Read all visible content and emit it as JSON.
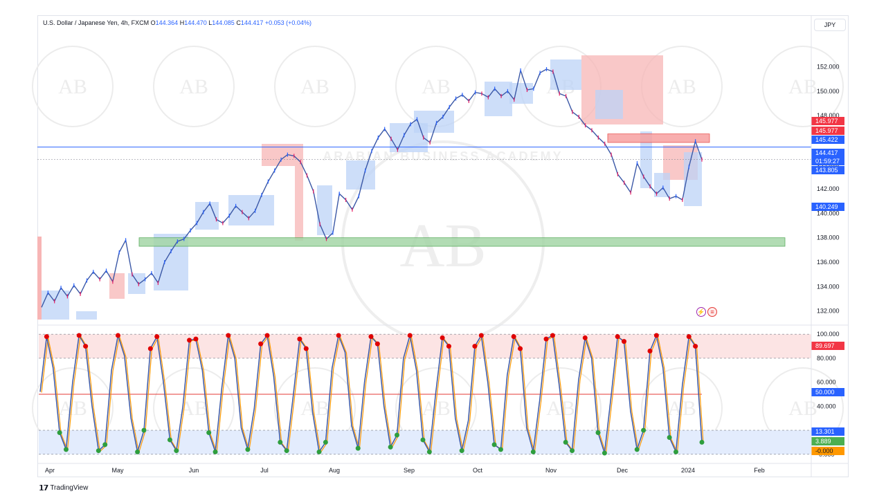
{
  "header": {
    "symbol": "U.S. Dollar / Japanese Yen, 4h, FXCM",
    "o_label": "O",
    "o": "144.364",
    "h_label": "H",
    "h": "144.470",
    "l_label": "L",
    "l": "144.085",
    "c_label": "C",
    "c": "144.417",
    "change": "+0.053 (+0.04%)"
  },
  "currency_button": "JPY",
  "brand": "TradingView",
  "watermark": "ARABIAN BUSINESS ACADEMY",
  "watermark_mark": "AB",
  "colors": {
    "up": "#2962ff",
    "down": "#e91e63",
    "line_blue": "#3b58a6",
    "supply": "#f7b5b5",
    "demand": "#bcd3f7",
    "green_zone": "#a5d6a7",
    "ob": "#fce4e4",
    "os": "#e3ecfd",
    "red_dot": "#e00000",
    "green_dot": "#2e9e3e",
    "orange": "#ff9800"
  },
  "chart_data": [
    {
      "type": "line",
      "title": "U.S. Dollar / Japanese Yen, 4h, FXCM",
      "xlabel": "",
      "ylabel": "",
      "x_ticks": [
        "Apr",
        "May",
        "Jun",
        "Jul",
        "Aug",
        "Sep",
        "Oct",
        "Nov",
        "Dec",
        "2024",
        "Feb"
      ],
      "y_ticks": [
        "152.000",
        "150.000",
        "148.000",
        "146.000",
        "144.000",
        "142.000",
        "140.000",
        "138.000",
        "136.000",
        "134.000",
        "132.000"
      ],
      "ylim": [
        131.3,
        153.5
      ],
      "series": [
        {
          "values": [
            132.3,
            133.5,
            132.8,
            133.9,
            133.2,
            134.1,
            133.4,
            134.5,
            135.2,
            134.6,
            135.3,
            134.4,
            136.8,
            137.8,
            135.0,
            134.2,
            134.6,
            135.1,
            134.3,
            136.0,
            136.9,
            137.7,
            137.9,
            138.6,
            139.2,
            140.1,
            140.8,
            139.5,
            139.2,
            139.8,
            140.6,
            140.1,
            139.6,
            140.2,
            141.5,
            142.6,
            143.5,
            144.4,
            144.8,
            144.7,
            144.2,
            143.1,
            141.8,
            139.1,
            137.9,
            138.4,
            141.6,
            141.1,
            140.3,
            141.4,
            143.5,
            145.1,
            146.2,
            146.9,
            146.1,
            145.2,
            146.4,
            147.3,
            147.7,
            146.2,
            145.8,
            147.4,
            147.9,
            148.7,
            149.4,
            149.7,
            149.2,
            149.9,
            149.8,
            149.5,
            150.2,
            149.6,
            150.0,
            149.3,
            151.7,
            150.1,
            150.2,
            151.5,
            151.8,
            151.6,
            149.8,
            149.6,
            148.3,
            147.9,
            147.2,
            146.8,
            146.2,
            145.7,
            144.8,
            143.2,
            142.5,
            141.7,
            144.1,
            143.0,
            142.2,
            141.6,
            142.1,
            141.2,
            141.4,
            141.1,
            143.8,
            145.9,
            144.4
          ]
        }
      ],
      "levels": [
        {
          "label": "145.977",
          "price": 145.977,
          "color": "#f23645"
        },
        {
          "label": "145.977",
          "price": 145.977,
          "color": "#f23645"
        },
        {
          "label": "145.422",
          "price": 145.422,
          "color": "#2962ff"
        },
        {
          "label": "144.417",
          "price": 144.417,
          "color": "#2962ff"
        },
        {
          "label": "01:59:27",
          "price": 144.0,
          "color": "#2962ff"
        },
        {
          "label": "143.805",
          "price": 143.805,
          "color": "#2962ff"
        },
        {
          "label": "140.249",
          "price": 140.249,
          "color": "#2962ff"
        }
      ],
      "zones": [
        {
          "kind": "green",
          "from_x": 14,
          "to_x": 104,
          "low": 137.3,
          "high": 138.0
        },
        {
          "kind": "supply",
          "from_x": 85,
          "to_x": 103,
          "low": 145.8,
          "high": 146.5
        }
      ]
    },
    {
      "type": "line",
      "title": "Stochastic",
      "x_ticks": [
        "Apr",
        "May",
        "Jun",
        "Jul",
        "Aug",
        "Sep",
        "Oct",
        "Nov",
        "Dec",
        "2024",
        "Feb"
      ],
      "y_ticks": [
        "100.000",
        "80.000",
        "60.000",
        "40.000",
        "20.000",
        "-0.000"
      ],
      "ylim": [
        -3,
        103
      ],
      "bands": {
        "upper": 100,
        "high": 80,
        "mid": 50,
        "low": 20,
        "lower": 0
      },
      "levels": [
        {
          "label": "89.697",
          "value": 89.697,
          "color": "#f23645"
        },
        {
          "label": "50.000",
          "value": 50.0,
          "color": "#2962ff"
        },
        {
          "label": "13.301",
          "value": 13.301,
          "color": "#2962ff"
        },
        {
          "label": "3.889",
          "value": 3.889,
          "color": "#4caf50"
        },
        {
          "label": "-0.000",
          "value": 0.0,
          "color": "#ff9800"
        }
      ],
      "series": [
        {
          "values": [
            52,
            98,
            72,
            18,
            4,
            60,
            99,
            90,
            40,
            3,
            8,
            70,
            99,
            82,
            30,
            2,
            20,
            88,
            98,
            60,
            12,
            3,
            40,
            95,
            96,
            70,
            18,
            2,
            55,
            99,
            80,
            22,
            4,
            38,
            92,
            99,
            65,
            10,
            3,
            48,
            96,
            88,
            35,
            2,
            10,
            72,
            99,
            85,
            24,
            5,
            60,
            98,
            92,
            40,
            6,
            16,
            80,
            99,
            70,
            12,
            2,
            52,
            97,
            90,
            30,
            3,
            28,
            90,
            99,
            60,
            8,
            4,
            66,
            98,
            88,
            22,
            2,
            45,
            96,
            99,
            58,
            10,
            3,
            62,
            97,
            80,
            18,
            1,
            48,
            98,
            94,
            36,
            4,
            20,
            86,
            99,
            72,
            14,
            2,
            58,
            98,
            90,
            10
          ]
        }
      ]
    }
  ]
}
